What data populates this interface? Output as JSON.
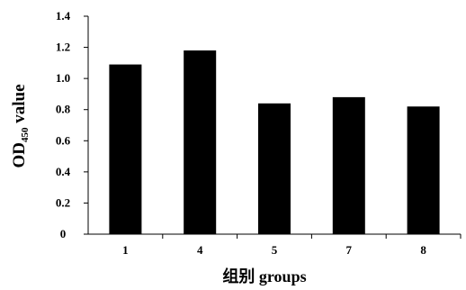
{
  "chart_data": {
    "type": "bar",
    "categories": [
      "1",
      "4",
      "5",
      "7",
      "8"
    ],
    "values": [
      1.09,
      1.18,
      0.84,
      0.88,
      0.82
    ],
    "bar_color": "#000000",
    "xlabel": "组别 groups",
    "ylabel": {
      "prefix": "OD",
      "subscript": "450",
      "suffix": " value"
    },
    "ylim": [
      0,
      1.4
    ],
    "yticks": [
      "0",
      "0.2",
      "0.4",
      "0.6",
      "0.8",
      "1.0",
      "1.2",
      "1.4"
    ],
    "grid": false,
    "legend": "none"
  }
}
